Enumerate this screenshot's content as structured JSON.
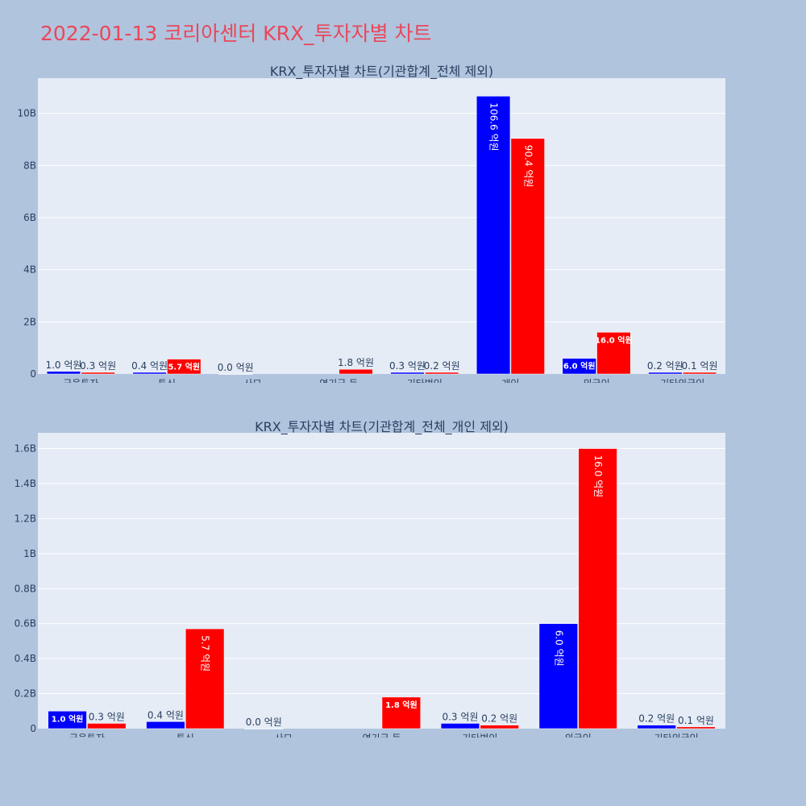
{
  "page": {
    "title": "2022-01-13 코리아센터 KRX_투자자별 차트"
  },
  "colors": {
    "background": "#b0c4de",
    "plot_bg": "#e5ecf6",
    "title": "#e8485a",
    "series_a": "#0000ff",
    "series_b": "#ff0000",
    "text": "#2a3f5f"
  },
  "chart_data": [
    {
      "type": "bar",
      "title": "KRX_투자자별 차트(기관합계_전체 제외)",
      "categories": [
        "금융투자",
        "투신",
        "사모",
        "연기금 등",
        "기타법인",
        "개인",
        "외국인",
        "기타외국인"
      ],
      "series": [
        {
          "color": "#0000ff",
          "values": [
            100000000,
            40000000,
            0,
            0,
            30000000,
            10660000000,
            600000000,
            20000000
          ],
          "labels": [
            "1.0 억원",
            "0.4 억원",
            "0.0 억원",
            "",
            "0.3 억원",
            "106.6 억원",
            "6.0 억원",
            "0.2 억원"
          ]
        },
        {
          "color": "#ff0000",
          "values": [
            30000000,
            570000000,
            0,
            180000000,
            20000000,
            9040000000,
            1600000000,
            10000000
          ],
          "labels": [
            "0.3 억원",
            "5.7 억원",
            "",
            "1.8 억원",
            "0.2 억원",
            "90.4 억원",
            "16.0 억원",
            "0.1 억원"
          ]
        }
      ],
      "ylim": [
        0,
        11350000000
      ],
      "yticks": [
        {
          "value": 0,
          "label": "0"
        },
        {
          "value": 2000000000,
          "label": "2B"
        },
        {
          "value": 4000000000,
          "label": "4B"
        },
        {
          "value": 6000000000,
          "label": "6B"
        },
        {
          "value": 8000000000,
          "label": "8B"
        },
        {
          "value": 10000000000,
          "label": "10B"
        }
      ]
    },
    {
      "type": "bar",
      "title": "KRX_투자자별 차트(기관합계_전체_개인 제외)",
      "categories": [
        "금융투자",
        "투신",
        "사모",
        "연기금 등",
        "기타법인",
        "외국인",
        "기타외국인"
      ],
      "series": [
        {
          "color": "#0000ff",
          "values": [
            100000000,
            40000000,
            0,
            0,
            30000000,
            600000000,
            20000000
          ],
          "labels": [
            "1.0 억원",
            "0.4 억원",
            "0.0 억원",
            "",
            "0.3 억원",
            "6.0 억원",
            "0.2 억원"
          ]
        },
        {
          "color": "#ff0000",
          "values": [
            30000000,
            570000000,
            0,
            180000000,
            20000000,
            1600000000,
            10000000
          ],
          "labels": [
            "0.3 억원",
            "5.7 억원",
            "",
            "1.8 억원",
            "0.2 억원",
            "16.0 억원",
            "0.1 억원"
          ]
        }
      ],
      "ylim": [
        0,
        1690000000
      ],
      "yticks": [
        {
          "value": 0,
          "label": "0"
        },
        {
          "value": 200000000,
          "label": "0.2B"
        },
        {
          "value": 400000000,
          "label": "0.4B"
        },
        {
          "value": 600000000,
          "label": "0.6B"
        },
        {
          "value": 800000000,
          "label": "0.8B"
        },
        {
          "value": 1000000000,
          "label": "1B"
        },
        {
          "value": 1200000000,
          "label": "1.2B"
        },
        {
          "value": 1400000000,
          "label": "1.4B"
        },
        {
          "value": 1600000000,
          "label": "1.6B"
        }
      ]
    }
  ]
}
